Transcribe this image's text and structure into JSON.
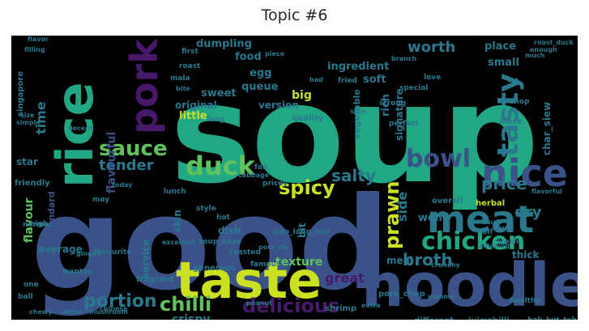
{
  "title": "Topic #6",
  "colors": {
    "background": "#000000",
    "teal": "#21a784",
    "blue": "#3b5289",
    "green": "#5fc25d",
    "yellow": "#cbe11f",
    "purple": "#48196b",
    "mid": "#2a788e"
  },
  "words": [
    {
      "text": "soup",
      "color": "#21a784"
    },
    {
      "text": "good",
      "color": "#3b5289"
    },
    {
      "text": "noodle",
      "color": "#3b5289"
    },
    {
      "text": "taste",
      "color": "#cbe11f"
    },
    {
      "text": "rice",
      "color": "#21a784"
    },
    {
      "text": "pork",
      "color": "#48196b"
    },
    {
      "text": "meat",
      "color": "#2a788e"
    },
    {
      "text": "nice",
      "color": "#3b5289"
    },
    {
      "text": "tasty",
      "color": "#2a788e"
    },
    {
      "text": "duck",
      "color": "#5fc25d"
    },
    {
      "text": "chicken",
      "color": "#21a784"
    },
    {
      "text": "bowl",
      "color": "#3b5289"
    },
    {
      "text": "sauce",
      "color": "#5fc25d"
    },
    {
      "text": "spicy",
      "color": "#cbe11f"
    },
    {
      "text": "prawn",
      "color": "#cbe11f"
    },
    {
      "text": "chilli",
      "color": "#5fc25d"
    },
    {
      "text": "portion",
      "color": "#2a788e"
    },
    {
      "text": "delicious",
      "color": "#48196b"
    },
    {
      "text": "broth",
      "color": "#2a788e"
    },
    {
      "text": "price",
      "color": "#2a788e"
    },
    {
      "text": "salty",
      "color": "#2a788e"
    },
    {
      "text": "tender",
      "color": "#2a788e"
    },
    {
      "text": "worth",
      "color": "#2a788e"
    },
    {
      "text": "dry",
      "color": "#2a788e"
    },
    {
      "text": "crispy",
      "color": "#2a788e"
    },
    {
      "text": "texture",
      "color": "#5fc25d"
    },
    {
      "text": "great",
      "color": "#48196b"
    },
    {
      "text": "side",
      "color": "#2a788e"
    },
    {
      "text": "time",
      "color": "#2a788e"
    },
    {
      "text": "flavourful",
      "color": "#3b5289"
    },
    {
      "text": "flavour",
      "color": "#5fc25d"
    },
    {
      "text": "dumpling",
      "color": "#2a788e"
    },
    {
      "text": "ingredient",
      "color": "#2a788e"
    },
    {
      "text": "food",
      "color": "#2a788e"
    },
    {
      "text": "egg",
      "color": "#2a788e"
    },
    {
      "text": "queue",
      "color": "#2a788e"
    },
    {
      "text": "sweet",
      "color": "#2a788e"
    },
    {
      "text": "original",
      "color": "#2a788e"
    },
    {
      "text": "version",
      "color": "#2a788e"
    },
    {
      "text": "big",
      "color": "#cbe11f"
    },
    {
      "text": "little",
      "color": "#cbe11f"
    },
    {
      "text": "rich",
      "color": "#2a788e"
    },
    {
      "text": "soft",
      "color": "#2a788e"
    },
    {
      "text": "signature",
      "color": "#2a788e"
    },
    {
      "text": "vegetable",
      "color": "#2a788e"
    },
    {
      "text": "char_siew",
      "color": "#2a788e"
    },
    {
      "text": "well",
      "color": "#2a788e"
    },
    {
      "text": "small",
      "color": "#2a788e"
    },
    {
      "text": "place",
      "color": "#2a788e"
    },
    {
      "text": "star",
      "color": "#2a788e"
    },
    {
      "text": "standard",
      "color": "#3b5289"
    },
    {
      "text": "average",
      "color": "#2a788e"
    },
    {
      "text": "service",
      "color": "#2a788e"
    },
    {
      "text": "skin",
      "color": "#2a788e"
    },
    {
      "text": "dish",
      "color": "#2a788e"
    },
    {
      "text": "bit",
      "color": "#2a788e"
    },
    {
      "text": "meal",
      "color": "#2a788e"
    },
    {
      "text": "thick",
      "color": "#2a788e"
    },
    {
      "text": "quality",
      "color": "#2a788e"
    },
    {
      "text": "fragrant",
      "color": "#2a788e"
    },
    {
      "text": "generous",
      "color": "#2a788e"
    },
    {
      "text": "pork_chop",
      "color": "#2a788e"
    },
    {
      "text": "different",
      "color": "#2a788e"
    },
    {
      "text": "juicy",
      "color": "#2a788e"
    },
    {
      "text": "chilli",
      "color": "#2a788e"
    },
    {
      "text": "shrimp",
      "color": "#2a788e"
    },
    {
      "text": "singapore",
      "color": "#2a788e"
    },
    {
      "text": "friendly",
      "color": "#2a788e"
    },
    {
      "text": "soup_base",
      "color": "#2a788e"
    },
    {
      "text": "xiao_long_bao",
      "color": "#2a788e"
    },
    {
      "text": "herbal",
      "color": "#cbe11f"
    },
    {
      "text": "overall",
      "color": "#2a788e"
    },
    {
      "text": "bak_kut_teh",
      "color": "#2a788e"
    },
    {
      "text": "healthy",
      "color": "#2a788e"
    },
    {
      "text": "roasted",
      "color": "#2a788e"
    },
    {
      "text": "famous",
      "color": "#2a788e"
    },
    {
      "text": "wanton",
      "color": "#2a788e"
    },
    {
      "text": "ball",
      "color": "#2a788e"
    },
    {
      "text": "one",
      "color": "#2a788e"
    },
    {
      "text": "favourite",
      "color": "#2a788e"
    },
    {
      "text": "hot",
      "color": "#2a788e"
    },
    {
      "text": "flavorful",
      "color": "#2a788e"
    },
    {
      "text": "strong",
      "color": "#2a788e"
    },
    {
      "text": "perfect",
      "color": "#2a788e"
    },
    {
      "text": "special",
      "color": "#2a788e"
    },
    {
      "text": "black",
      "color": "#2a788e"
    },
    {
      "text": "shop",
      "color": "#2a788e"
    },
    {
      "text": "fried",
      "color": "#2a788e"
    },
    {
      "text": "love",
      "color": "#2a788e"
    },
    {
      "text": "first",
      "color": "#2a788e"
    },
    {
      "text": "fan",
      "color": "#2a788e"
    },
    {
      "text": "lunch",
      "color": "#2a788e"
    },
    {
      "text": "style",
      "color": "#2a788e"
    },
    {
      "text": "pricey",
      "color": "#2a788e"
    },
    {
      "text": "mala",
      "color": "#2a788e"
    },
    {
      "text": "roast",
      "color": "#2a788e"
    },
    {
      "text": "long",
      "color": "#2a788e"
    },
    {
      "text": "high",
      "color": "#2a788e"
    },
    {
      "text": "may",
      "color": "#2a788e"
    },
    {
      "text": "half",
      "color": "#2a788e"
    },
    {
      "text": "fresh",
      "color": "#2a788e"
    },
    {
      "text": "extra",
      "color": "#2a788e"
    },
    {
      "text": "normal",
      "color": "#2a788e"
    },
    {
      "text": "chinese",
      "color": "#2a788e"
    },
    {
      "text": "chewy",
      "color": "#2a788e"
    },
    {
      "text": "white",
      "color": "#2a788e"
    },
    {
      "text": "mushroom",
      "color": "#2a788e"
    },
    {
      "text": "flavor",
      "color": "#2a788e"
    },
    {
      "text": "filling",
      "color": "#2a788e"
    },
    {
      "text": "roast_duck",
      "color": "#2a788e"
    },
    {
      "text": "much",
      "color": "#2a788e"
    },
    {
      "text": "piece",
      "color": "#2a788e"
    },
    {
      "text": "bad",
      "color": "#2a788e"
    },
    {
      "text": "bite",
      "color": "#2a788e"
    },
    {
      "text": "slice",
      "color": "#2a788e"
    },
    {
      "text": "branch",
      "color": "#2a788e"
    },
    {
      "text": "fat",
      "color": "#2a788e"
    },
    {
      "text": "usual",
      "color": "#2a788e"
    },
    {
      "text": "yummy",
      "color": "#2a788e"
    },
    {
      "text": "pork_rib",
      "color": "#2a788e"
    },
    {
      "text": "excellent",
      "color": "#2a788e"
    },
    {
      "text": "cabbage",
      "color": "#2a788e"
    },
    {
      "text": "ginger",
      "color": "#2a788e"
    },
    {
      "text": "simple",
      "color": "#2a788e"
    },
    {
      "text": "today",
      "color": "#2a788e"
    },
    {
      "text": "peanut",
      "color": "#2a788e"
    },
    {
      "text": "crunchy",
      "color": "#2a788e"
    },
    {
      "text": "sure",
      "color": "#2a788e"
    },
    {
      "text": "enough",
      "color": "#2a788e"
    },
    {
      "text": "size",
      "color": "#2a788e"
    },
    {
      "text": "amazing",
      "color": "#2a788e"
    },
    {
      "text": "decent",
      "color": "#2a788e"
    }
  ]
}
